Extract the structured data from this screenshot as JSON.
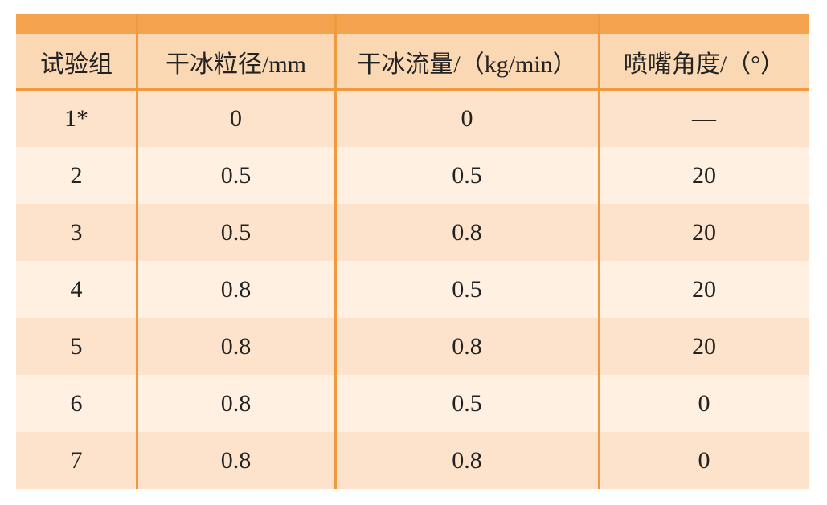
{
  "table": {
    "header": [
      "试验组",
      "干冰粒径/mm",
      "干冰流量/（kg/min）",
      "喷嘴角度/（°）"
    ],
    "rows": [
      [
        "1*",
        "0",
        "0",
        "—"
      ],
      [
        "2",
        "0.5",
        "0.5",
        "20"
      ],
      [
        "3",
        "0.5",
        "0.8",
        "20"
      ],
      [
        "4",
        "0.8",
        "0.5",
        "20"
      ],
      [
        "5",
        "0.8",
        "0.8",
        "20"
      ],
      [
        "6",
        "0.8",
        "0.5",
        "0"
      ],
      [
        "7",
        "0.8",
        "0.8",
        "0"
      ]
    ]
  }
}
